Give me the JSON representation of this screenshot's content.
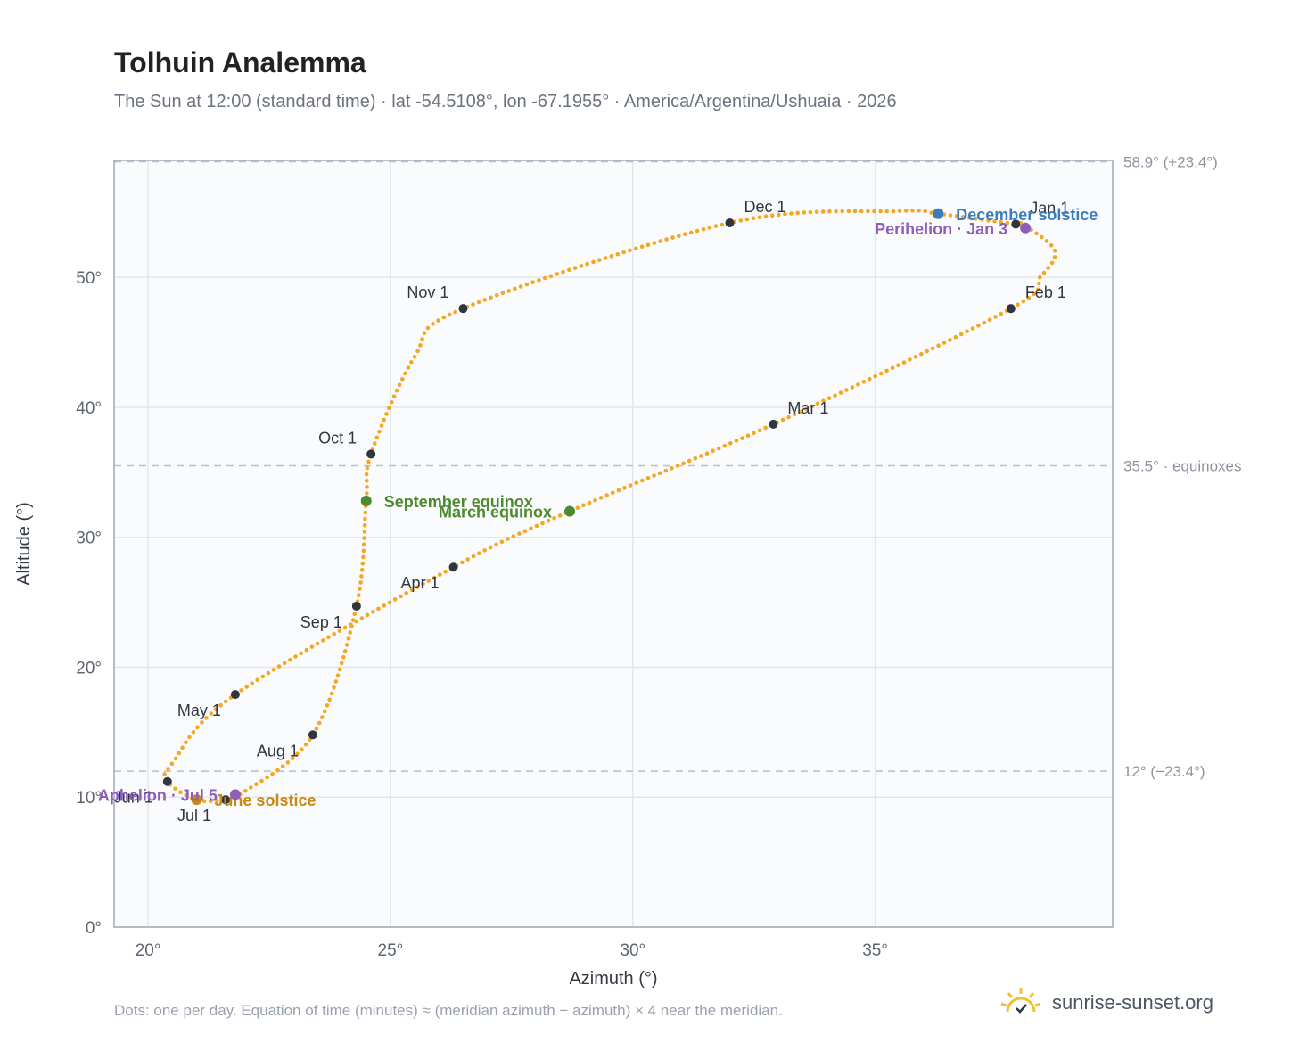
{
  "header": {
    "title": "Tolhuin Analemma",
    "subtitle": "The Sun at 12:00 (standard time) · lat -54.5108°, lon -67.1955° · America/Argentina/Ushuaia · 2026"
  },
  "footer": {
    "note": "Dots: one per day. Equation of time (minutes) ≈ (meridian azimuth − azimuth) × 4 near the meridian.",
    "brand": "sunrise-sunset.org"
  },
  "colors": {
    "curve": "#f5a623",
    "month_marker": "#2f3640",
    "equinox": "#4e8a2e",
    "december_solstice": "#3a7dbf",
    "june_solstice": "#c98a14",
    "apsis": "#8e5fb8",
    "reference_line": "#b9c0ca",
    "plot_bg": "#f9fbfd",
    "grid": "#e3e7ed"
  },
  "chart_data": {
    "type": "scatter",
    "title": "Tolhuin Analemma",
    "xlabel": "Azimuth (°)",
    "ylabel": "Altitude (°)",
    "xlim": [
      19.3,
      39.9
    ],
    "ylim": [
      0,
      59
    ],
    "x_ticks": [
      20,
      25,
      30,
      35
    ],
    "x_tick_labels": [
      "20°",
      "25°",
      "30°",
      "35°"
    ],
    "y_ticks": [
      0,
      10,
      20,
      30,
      40,
      50
    ],
    "y_tick_labels": [
      "0°",
      "10°",
      "20°",
      "30°",
      "40°",
      "50°"
    ],
    "grid": true,
    "reference_lines": [
      {
        "y": 58.9,
        "label": "58.9° (+23.4°)"
      },
      {
        "y": 35.5,
        "label": "35.5° · equinoxes"
      },
      {
        "y": 12.0,
        "label": "12° (−23.4°)"
      }
    ],
    "curve_nodes": [
      {
        "x": 38.0,
        "y": 54.2
      },
      {
        "x": 38.6,
        "y": 52.6
      },
      {
        "x": 38.7,
        "y": 51.5
      },
      {
        "x": 38.4,
        "y": 50.0
      },
      {
        "x": 37.8,
        "y": 47.6
      },
      {
        "x": 32.9,
        "y": 38.7
      },
      {
        "x": 28.7,
        "y": 32.0
      },
      {
        "x": 26.3,
        "y": 27.7
      },
      {
        "x": 21.8,
        "y": 17.9
      },
      {
        "x": 20.5,
        "y": 12.6
      },
      {
        "x": 20.4,
        "y": 11.2
      },
      {
        "x": 21.0,
        "y": 9.8
      },
      {
        "x": 21.6,
        "y": 9.8
      },
      {
        "x": 21.9,
        "y": 10.2
      },
      {
        "x": 23.4,
        "y": 14.8
      },
      {
        "x": 24.3,
        "y": 24.7
      },
      {
        "x": 24.5,
        "y": 32.8
      },
      {
        "x": 24.6,
        "y": 36.4
      },
      {
        "x": 25.5,
        "y": 43.9
      },
      {
        "x": 26.5,
        "y": 47.6
      },
      {
        "x": 32.0,
        "y": 54.2
      },
      {
        "x": 35.5,
        "y": 55.1
      },
      {
        "x": 36.3,
        "y": 54.9
      },
      {
        "x": 37.9,
        "y": 54.1
      },
      {
        "x": 38.0,
        "y": 54.2
      }
    ],
    "month_markers": [
      {
        "label": "Jan 1",
        "x": 37.9,
        "y": 54.1,
        "pos": "above-right"
      },
      {
        "label": "Feb 1",
        "x": 37.8,
        "y": 47.6,
        "pos": "above-right"
      },
      {
        "label": "Mar 1",
        "x": 32.9,
        "y": 38.7,
        "pos": "above-right"
      },
      {
        "label": "Apr 1",
        "x": 26.3,
        "y": 27.7,
        "pos": "below-left"
      },
      {
        "label": "May 1",
        "x": 21.8,
        "y": 17.9,
        "pos": "below-left"
      },
      {
        "label": "Jun 1",
        "x": 20.4,
        "y": 11.2,
        "pos": "below-left"
      },
      {
        "label": "Jul 1",
        "x": 21.6,
        "y": 9.8,
        "pos": "below-left"
      },
      {
        "label": "Aug 1",
        "x": 23.4,
        "y": 14.8,
        "pos": "below-left"
      },
      {
        "label": "Sep 1",
        "x": 24.3,
        "y": 24.7,
        "pos": "below-left"
      },
      {
        "label": "Oct 1",
        "x": 24.6,
        "y": 36.4,
        "pos": "above-left"
      },
      {
        "label": "Nov 1",
        "x": 26.5,
        "y": 47.6,
        "pos": "above-left"
      },
      {
        "label": "Dec 1",
        "x": 32.0,
        "y": 54.2,
        "pos": "above-right"
      }
    ],
    "events": [
      {
        "label": "December solstice",
        "x": 36.3,
        "y": 54.9,
        "color": "#3a7dbf",
        "anchor": "start"
      },
      {
        "label": "Perihelion · Jan 3",
        "x": 38.1,
        "y": 53.8,
        "color": "#8e5fb8",
        "anchor": "end"
      },
      {
        "label": "March equinox",
        "x": 28.7,
        "y": 32.0,
        "color": "#4e8a2e",
        "anchor": "end"
      },
      {
        "label": "September equinox",
        "x": 24.5,
        "y": 32.8,
        "color": "#4e8a2e",
        "anchor": "start"
      },
      {
        "label": "June solstice",
        "x": 21.0,
        "y": 9.8,
        "color": "#c98a14",
        "anchor": "start"
      },
      {
        "label": "Aphelion · Jul 5",
        "x": 21.8,
        "y": 10.2,
        "color": "#8e5fb8",
        "anchor": "end"
      }
    ]
  }
}
